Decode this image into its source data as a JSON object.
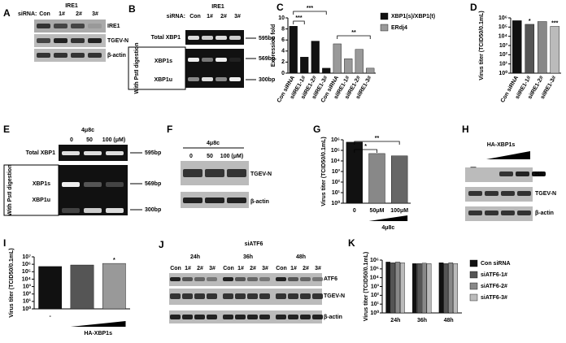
{
  "blots": [
    {
      "panel": "A",
      "texts": [
        "siRNA:",
        "IRE1",
        "Con",
        "1#",
        "2#",
        "3#",
        "IRE1",
        "TGEV-N",
        "β-actin"
      ]
    },
    {
      "panel": "B",
      "texts": [
        "siRNA:",
        "Con",
        "1#",
        "2#",
        "3#",
        "IRE1",
        "Total XBP1",
        "595bp",
        "XBP1s",
        "569bp",
        "XBP1u",
        "300bp",
        "With PstI digestion"
      ]
    },
    {
      "panel": "E",
      "texts": [
        "4μ8c",
        "0",
        "50",
        "100 (μM)",
        "Total XBP1",
        "595bp",
        "XBP1s",
        "569bp",
        "XBP1u",
        "300bp",
        "With PstI digestion"
      ]
    },
    {
      "panel": "F",
      "texts": [
        "4μ8c",
        "0",
        "50",
        "100 (μM)",
        "TGEV-N",
        "β-actin"
      ]
    },
    {
      "panel": "H",
      "texts": [
        "HA-XBP1s",
        "—",
        "HA",
        "TGEV-N",
        "β-actin"
      ]
    },
    {
      "panel": "J",
      "texts": [
        "siATF6",
        "24h",
        "36h",
        "48h",
        "Con",
        "1#",
        "2#",
        "3#",
        "Con",
        "1#",
        "2#",
        "3#",
        "Con",
        "1#",
        "2#",
        "3#",
        "ATF6",
        "TGEV-N",
        "β-actin"
      ]
    }
  ],
  "chart_data": [
    {
      "type": "bar",
      "panel": "C",
      "ylabel": "Expression fold",
      "categories": [
        "Con siRNA",
        "siIRE1-1#",
        "siIRE1-2#",
        "siIRE1-3#",
        "Con siRNA",
        "siIRE1-1#",
        "siIRE1-2#",
        "siIRE1-3#"
      ],
      "series": [
        {
          "name": "XBP1(s)/XBP1(t)",
          "color": "#111111",
          "values": [
            8.5,
            2.9,
            5.8,
            0.9,
            null,
            null,
            null,
            null
          ]
        },
        {
          "name": "ERdj4",
          "color": "#999999",
          "values": [
            null,
            null,
            null,
            null,
            5.3,
            2.6,
            4.3,
            0.9
          ]
        }
      ],
      "ylim": [
        0,
        10
      ],
      "yticks": [
        0,
        2,
        4,
        6,
        8,
        10
      ],
      "log_scale": false,
      "legend": true,
      "annotations": [
        "***",
        "***",
        "**"
      ]
    },
    {
      "type": "bar",
      "panel": "D",
      "ylabel": "Virus titer (TCID50/0.1mL)",
      "categories": [
        "Con siRNA",
        "siIRE1-1#",
        "siIRE1-2#",
        "siIRE1-3#"
      ],
      "values": [
        500000,
        200000,
        400000,
        120000
      ],
      "colors": [
        "#111111",
        "#555555",
        "#888888",
        "#bbbbbb"
      ],
      "ylim": [
        1,
        1000000
      ],
      "log_scale": true,
      "yticks": [
        {
          "value": 1,
          "label": "10⁰"
        },
        {
          "value": 10,
          "label": "10¹"
        },
        {
          "value": 100,
          "label": "10²"
        },
        {
          "value": 1000,
          "label": "10³"
        },
        {
          "value": 10000,
          "label": "10⁴"
        },
        {
          "value": 100000,
          "label": "10⁵"
        },
        {
          "value": 1000000,
          "label": "10⁶"
        }
      ],
      "annotations": [
        "*",
        "***"
      ]
    },
    {
      "type": "bar",
      "panel": "G",
      "ylabel": "Virus titer (TCID50/0.1mL)",
      "xlabel": "4μ8c",
      "categories": [
        "0",
        "50μM",
        "100μM"
      ],
      "values": [
        600000,
        50000,
        30000
      ],
      "colors": [
        "#111111",
        "#888888",
        "#666666"
      ],
      "ylim": [
        1,
        1000000
      ],
      "log_scale": true,
      "yticks": [
        {
          "value": 1,
          "label": "10⁰"
        },
        {
          "value": 10,
          "label": "10¹"
        },
        {
          "value": 100,
          "label": "10²"
        },
        {
          "value": 1000,
          "label": "10³"
        },
        {
          "value": 10000,
          "label": "10⁴"
        },
        {
          "value": 100000,
          "label": "10⁵"
        },
        {
          "value": 1000000,
          "label": "10⁶"
        }
      ],
      "annotations": [
        "*",
        "**"
      ]
    },
    {
      "type": "bar",
      "panel": "I",
      "ylabel": "Virus titer (TCID50/0.1mL)",
      "xlabel": "HA-XBP1s",
      "categories": [
        "-",
        null,
        null
      ],
      "values": [
        500000,
        800000,
        1300000
      ],
      "colors": [
        "#111111",
        "#555555",
        "#999999"
      ],
      "ylim": [
        1,
        10000000
      ],
      "log_scale": true,
      "yticks": [
        {
          "value": 1,
          "label": "10⁰"
        },
        {
          "value": 10,
          "label": "10¹"
        },
        {
          "value": 100,
          "label": "10²"
        },
        {
          "value": 1000,
          "label": "10³"
        },
        {
          "value": 10000,
          "label": "10⁴"
        },
        {
          "value": 100000,
          "label": "10⁵"
        },
        {
          "value": 1000000,
          "label": "10⁶"
        },
        {
          "value": 10000000,
          "label": "10⁷"
        }
      ],
      "annotations": [
        "*"
      ]
    },
    {
      "type": "bar",
      "panel": "K",
      "ylabel": "Virus titer (TCID50/0.1mL)",
      "categories": [
        "24h",
        "36h",
        "48h"
      ],
      "series": [
        {
          "name": "Con siRNA",
          "color": "#111111",
          "values": [
            600000,
            400000,
            500000
          ]
        },
        {
          "name": "siATF6-1#",
          "color": "#555555",
          "values": [
            500000,
            400000,
            400000
          ]
        },
        {
          "name": "siATF6-2#",
          "color": "#888888",
          "values": [
            600000,
            450000,
            500000
          ]
        },
        {
          "name": "siATF6-3#",
          "color": "#bbbbbb",
          "values": [
            500000,
            400000,
            400000
          ]
        }
      ],
      "ylim": [
        1,
        1000000
      ],
      "log_scale": true,
      "legend": true,
      "yticks": [
        {
          "value": 1,
          "label": "10⁰"
        },
        {
          "value": 10,
          "label": "10¹"
        },
        {
          "value": 100,
          "label": "10²"
        },
        {
          "value": 1000,
          "label": "10³"
        },
        {
          "value": 10000,
          "label": "10⁴"
        },
        {
          "value": 100000,
          "label": "10⁵"
        },
        {
          "value": 1000000,
          "label": "10⁶"
        }
      ]
    }
  ]
}
